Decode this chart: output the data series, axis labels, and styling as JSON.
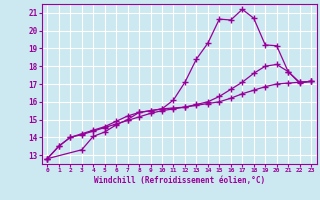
{
  "bg_color": "#cce8f0",
  "grid_color": "#ffffff",
  "line_color": "#990099",
  "marker": "+",
  "xlabel": "Windchill (Refroidissement éolien,°C)",
  "xlim": [
    -0.5,
    23.5
  ],
  "ylim": [
    12.5,
    21.5
  ],
  "yticks": [
    13,
    14,
    15,
    16,
    17,
    18,
    19,
    20,
    21
  ],
  "xticks": [
    0,
    1,
    2,
    3,
    4,
    5,
    6,
    7,
    8,
    9,
    10,
    11,
    12,
    13,
    14,
    15,
    16,
    17,
    18,
    19,
    20,
    21,
    22,
    23
  ],
  "series": [
    {
      "x": [
        0,
        1,
        2,
        3,
        4,
        5,
        6,
        7,
        8,
        9,
        10,
        11,
        12,
        13,
        14,
        15,
        16,
        17,
        18,
        19,
        20,
        21,
        22,
        23
      ],
      "y": [
        12.8,
        13.5,
        14.0,
        14.15,
        14.35,
        14.55,
        14.75,
        14.95,
        15.15,
        15.35,
        15.5,
        15.6,
        15.7,
        15.8,
        15.9,
        16.0,
        16.2,
        16.45,
        16.65,
        16.85,
        17.0,
        17.05,
        17.1,
        17.15
      ]
    },
    {
      "x": [
        0,
        1,
        2,
        3,
        4,
        5,
        6,
        7,
        8,
        9,
        10,
        11,
        12,
        13,
        14,
        15,
        16,
        17,
        18,
        19,
        20,
        21,
        22,
        23
      ],
      "y": [
        12.8,
        13.5,
        14.0,
        14.2,
        14.4,
        14.6,
        14.9,
        15.2,
        15.4,
        15.5,
        15.6,
        15.65,
        15.7,
        15.85,
        16.0,
        16.3,
        16.7,
        17.1,
        17.6,
        18.0,
        18.1,
        17.7,
        17.1,
        17.15
      ]
    },
    {
      "x": [
        0,
        3,
        4,
        5,
        6,
        7,
        8,
        9,
        10,
        11,
        12,
        13,
        14,
        15,
        16,
        17,
        18,
        19,
        20,
        21,
        22,
        23
      ],
      "y": [
        12.8,
        13.3,
        14.05,
        14.3,
        14.7,
        15.0,
        15.4,
        15.5,
        15.6,
        16.1,
        17.1,
        18.4,
        19.3,
        20.65,
        20.6,
        21.2,
        20.7,
        19.2,
        19.15,
        17.7,
        17.05,
        17.15
      ]
    }
  ]
}
